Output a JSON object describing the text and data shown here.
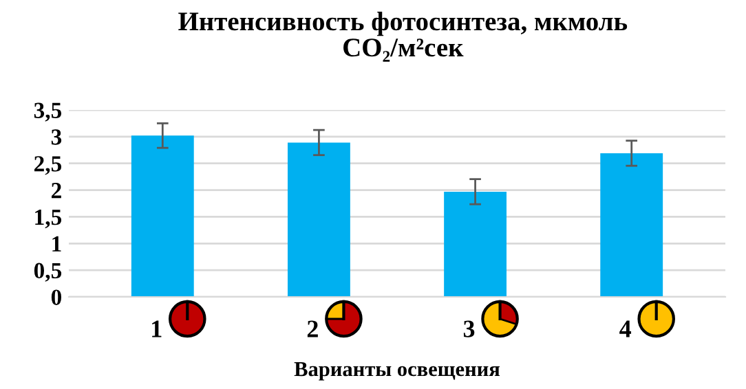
{
  "chart_data": {
    "type": "bar",
    "title": "Интенсивность фотосинтеза, мкмоль\nCO₂/м²сек",
    "xlabel": "Варианты освещения",
    "categories": [
      "1",
      "2",
      "3",
      "4"
    ],
    "values": [
      3.02,
      2.89,
      1.97,
      2.69
    ],
    "errors": [
      0.23,
      0.235,
      0.235,
      0.235
    ],
    "color": "#00b0f0",
    "ylim": [
      0,
      3.5
    ],
    "yticks": [
      0,
      {
        "value": 0.5,
        "label": "0,5"
      },
      1,
      {
        "value": 1.5,
        "label": "1,5"
      },
      2,
      {
        "value": 2.5,
        "label": "2,5"
      },
      3,
      {
        "value": 3.5,
        "label": "3,5"
      }
    ],
    "grid": "y"
  }
}
